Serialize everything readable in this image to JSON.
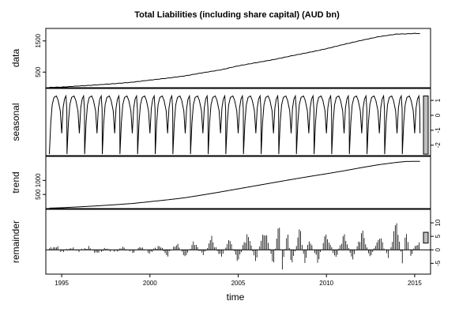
{
  "chart_data": {
    "type": "line",
    "title": "Total Liabilities (including share capital) (AUD bn)",
    "xlabel": "time",
    "x_range": [
      1994.1,
      2015.9
    ],
    "x_ticks": [
      1995,
      2000,
      2005,
      2010,
      2015
    ],
    "x_tick_labels": [
      "1995",
      "2000",
      "2005",
      "2010",
      "2015"
    ],
    "panels": [
      {
        "name": "data",
        "ylim": [
          0,
          1900
        ],
        "y_ticks": [
          500,
          1500
        ],
        "y_tick_labels": [
          "500",
          "1500"
        ],
        "ticks_side": "left",
        "series": {
          "x": [
            1994.3,
            1995.0,
            1996.0,
            1997.0,
            1998.0,
            1999.0,
            2000.0,
            2001.0,
            2002.0,
            2003.0,
            2004.0,
            2005.0,
            2006.0,
            2007.0,
            2008.0,
            2009.0,
            2010.0,
            2011.0,
            2012.0,
            2013.0,
            2014.0,
            2014.5,
            2015.0,
            2015.3
          ],
          "y": [
            10,
            20,
            55,
            90,
            130,
            175,
            245,
            305,
            380,
            480,
            570,
            700,
            800,
            900,
            1020,
            1130,
            1250,
            1390,
            1520,
            1640,
            1720,
            1725,
            1740,
            1735
          ]
        }
      },
      {
        "name": "seasonal",
        "ylim": [
          -2.7,
          1.8
        ],
        "y_ticks": [
          -2,
          -1,
          0,
          1
        ],
        "y_tick_labels": [
          "-2",
          "-1",
          "0",
          "1"
        ],
        "ticks_side": "right",
        "series": {
          "start": 1994.3,
          "end": 2015.3,
          "period": 1,
          "cycle_values": [
            -2.6,
            -0.5,
            0.7,
            1.2,
            1.3,
            1.0,
            0.3,
            -1.2,
            0.5,
            1.1,
            1.3,
            0.4
          ],
          "cycle_phase": [
            0.0,
            0.08,
            0.16,
            0.26,
            0.4,
            0.5,
            0.62,
            0.7,
            0.78,
            0.86,
            0.94,
            0.99
          ],
          "end_value": -1.2
        },
        "range_bar": true
      },
      {
        "name": "trend",
        "ylim": [
          0,
          1850
        ],
        "y_ticks": [
          500,
          1000
        ],
        "y_tick_labels": [
          "500",
          "1000"
        ],
        "ticks_side": "left",
        "series": {
          "x": [
            1994.3,
            1995.0,
            1996.0,
            1997.0,
            1998.0,
            1999.0,
            2000.0,
            2001.0,
            2002.0,
            2003.0,
            2004.0,
            2005.0,
            2006.0,
            2007.0,
            2008.0,
            2009.0,
            2010.0,
            2011.0,
            2012.0,
            2013.0,
            2014.0,
            2014.5,
            2015.0,
            2015.3
          ],
          "y": [
            15,
            30,
            60,
            95,
            135,
            180,
            245,
            310,
            385,
            485,
            590,
            700,
            810,
            920,
            1030,
            1135,
            1235,
            1340,
            1455,
            1560,
            1640,
            1670,
            1675,
            1675
          ]
        },
        "range_bar": false
      },
      {
        "name": "remainder",
        "ylim": [
          -9,
          15
        ],
        "y_ticks": [
          -5,
          0,
          5,
          10
        ],
        "y_tick_labels": [
          "-5",
          "0",
          "5",
          "10"
        ],
        "ticks_side": "right",
        "series": {
          "x": [
            1994.3,
            1994.7,
            1995.0,
            1995.5,
            1996.0,
            1996.5,
            1997.0,
            1997.5,
            1998.0,
            1998.5,
            1999.0,
            1999.5,
            2000.0,
            2000.5,
            2001.0,
            2001.5,
            2002.0,
            2002.5,
            2003.0,
            2003.5,
            2004.0,
            2004.5,
            2005.0,
            2005.5,
            2006.0,
            2006.5,
            2007.0,
            2007.3,
            2007.5,
            2007.8,
            2008.0,
            2008.5,
            2008.8,
            2009.0,
            2009.5,
            2010.0,
            2010.5,
            2011.0,
            2011.5,
            2012.0,
            2012.5,
            2013.0,
            2013.5,
            2014.0,
            2014.3,
            2014.5,
            2014.8,
            2015.0,
            2015.3
          ],
          "y": [
            0.5,
            1.5,
            -1.0,
            0.8,
            -0.5,
            1.2,
            -1.5,
            0.6,
            -0.8,
            1.0,
            -1.2,
            1.3,
            -1.5,
            2.0,
            -2.5,
            2.8,
            -3.0,
            3.5,
            -2.5,
            5.0,
            -3.5,
            4.5,
            -5.0,
            7.0,
            -4.5,
            9.0,
            -6.5,
            14.0,
            -9.0,
            8.0,
            -7.0,
            9.0,
            -6.5,
            5.5,
            -5.0,
            7.0,
            -4.0,
            6.5,
            -4.5,
            8.0,
            -3.5,
            6.0,
            -3.0,
            12.5,
            -5.5,
            8.0,
            -4.0,
            2.0,
            3.0
          ]
        },
        "range_bar": true
      }
    ]
  }
}
